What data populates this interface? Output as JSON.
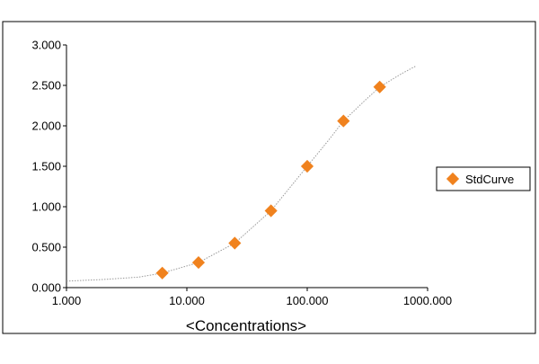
{
  "chart_data": {
    "type": "scatter",
    "x_scale": "log",
    "xlim": [
      1,
      1000
    ],
    "ylim": [
      0,
      3
    ],
    "x_ticks": [
      1,
      10,
      100,
      1000
    ],
    "x_tick_labels": [
      "1.000",
      "10.000",
      "100.000",
      "1000.000"
    ],
    "y_ticks": [
      0,
      0.5,
      1,
      1.5,
      2,
      2.5,
      3
    ],
    "y_tick_labels": [
      "0.000",
      "0.500",
      "1.000",
      "1.500",
      "2.000",
      "2.500",
      "3.000"
    ],
    "xlabel": "<Concentrations>",
    "ylabel": "",
    "title": "",
    "grid": false,
    "legend_position": "right",
    "series": [
      {
        "name": "StdCurve",
        "marker": "diamond",
        "color": "#f0821e",
        "x": [
          6.25,
          12.5,
          25,
          50,
          100,
          200,
          400
        ],
        "y": [
          0.18,
          0.31,
          0.55,
          0.95,
          1.5,
          2.06,
          2.48
        ]
      }
    ],
    "fit_curve": {
      "style": "dotted",
      "color": "#9a9a9a",
      "x": [
        1,
        2,
        4,
        6.25,
        12.5,
        25,
        50,
        100,
        150,
        200,
        300,
        400,
        600,
        800
      ],
      "y": [
        0.08,
        0.1,
        0.13,
        0.18,
        0.31,
        0.55,
        0.95,
        1.5,
        1.82,
        2.06,
        2.31,
        2.48,
        2.64,
        2.74
      ]
    }
  }
}
